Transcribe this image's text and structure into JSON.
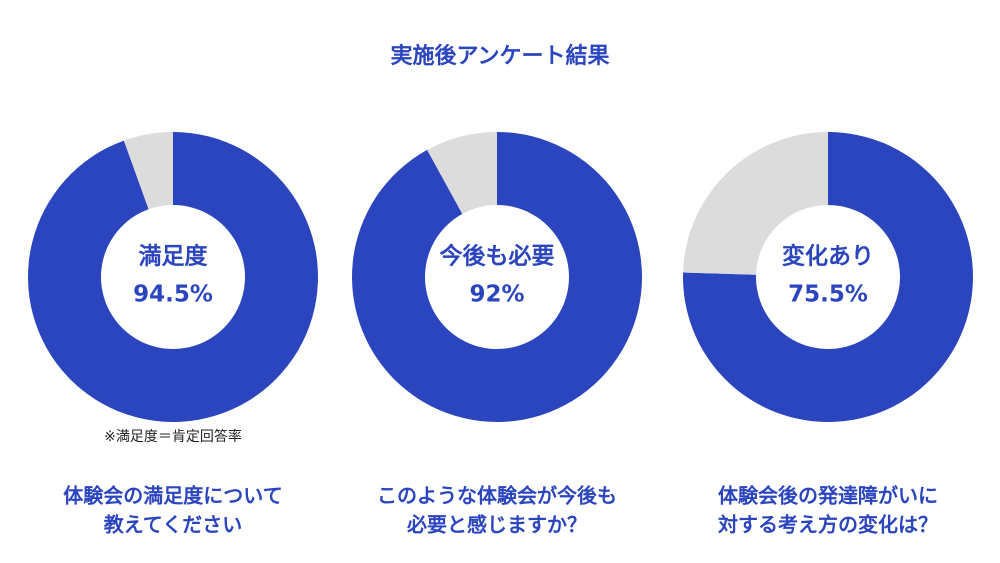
{
  "title": "実施後アンケート結果",
  "chart_data": [
    {
      "type": "donut",
      "center_label": "満足度",
      "values": [
        94.5,
        5.5
      ],
      "value_labels": [
        "94.5%",
        null
      ],
      "colors": [
        "#2b45bf",
        "#dcdcdc"
      ],
      "note": "※満足度＝肯定回答率",
      "question": [
        "体験会の満足度について",
        "教えてください"
      ]
    },
    {
      "type": "donut",
      "center_label": "今後も必要",
      "values": [
        92,
        8
      ],
      "value_labels": [
        "92%",
        null
      ],
      "colors": [
        "#2b45bf",
        "#dcdcdc"
      ],
      "question": [
        "このような体験会が今後も",
        "必要と感じますか？"
      ]
    },
    {
      "type": "donut",
      "center_label": "変化あり",
      "values": [
        75.5,
        24.5
      ],
      "value_labels": [
        "75.5%",
        null
      ],
      "colors": [
        "#2b45bf",
        "#dcdcdc"
      ],
      "question": [
        "体験会後の発達障がいに",
        "対する考え方の変化は？"
      ]
    }
  ]
}
